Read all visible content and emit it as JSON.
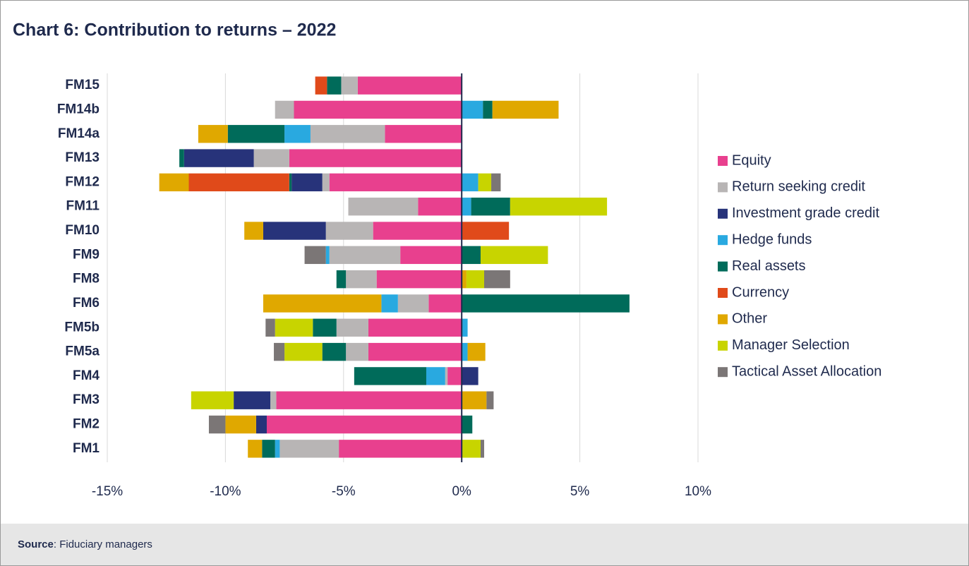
{
  "chart_data": {
    "type": "stacked-bar-horizontal",
    "title": "Chart 6: Contribution to returns – 2022",
    "categories": [
      "FM15",
      "FM14b",
      "FM14a",
      "FM13",
      "FM12",
      "FM11",
      "FM10",
      "FM9",
      "FM8",
      "FM6",
      "FM5b",
      "FM5a",
      "FM4",
      "FM3",
      "FM2",
      "FM1"
    ],
    "series": [
      {
        "name": "Equity",
        "color": "#e8408e",
        "values": [
          -4.4,
          -7.1,
          -3.25,
          -7.3,
          -5.6,
          -1.85,
          -3.75,
          -2.6,
          -3.6,
          -1.4,
          -3.95,
          -3.95,
          -0.6,
          -7.85,
          -8.25,
          -5.2
        ]
      },
      {
        "name": "Return seeking credit",
        "color": "#b8b5b5",
        "values": [
          -0.7,
          -0.8,
          -3.15,
          -1.5,
          -0.3,
          -2.95,
          -2.0,
          -3.0,
          -1.3,
          -1.3,
          -1.35,
          -0.95,
          -0.1,
          -0.25,
          0,
          -2.5
        ]
      },
      {
        "name": "Investment grade credit",
        "color": "#27337a",
        "values": [
          0,
          0,
          0,
          -2.95,
          -1.3,
          0,
          -2.65,
          0,
          0,
          0,
          0,
          0,
          0.7,
          -1.55,
          -0.45,
          0
        ]
      },
      {
        "name": "Hedge funds",
        "color": "#29a9e0",
        "values": [
          0,
          0.9,
          -1.1,
          0,
          0.7,
          0.4,
          0,
          -0.15,
          0,
          -0.7,
          0.25,
          0.25,
          -0.8,
          0,
          0,
          -0.2
        ]
      },
      {
        "name": "Real assets",
        "color": "#006b5a",
        "values": [
          -0.6,
          0.4,
          -2.4,
          -0.2,
          -0.1,
          1.65,
          0,
          0.8,
          -0.4,
          7.1,
          -1.0,
          -1.0,
          -3.05,
          0,
          0.45,
          -0.55
        ]
      },
      {
        "name": "Currency",
        "color": "#e04a1a",
        "values": [
          -0.5,
          0,
          0,
          0,
          -4.25,
          0,
          2.0,
          0,
          0,
          0,
          0,
          0,
          0,
          0,
          0,
          0
        ]
      },
      {
        "name": "Other",
        "color": "#e0a800",
        "values": [
          0,
          2.8,
          -1.25,
          0,
          -1.25,
          0,
          -0.8,
          0,
          0.2,
          -5.0,
          0,
          0.75,
          0,
          1.05,
          -1.3,
          -0.6
        ]
      },
      {
        "name": "Manager Selection",
        "color": "#c8d400",
        "values": [
          0,
          0,
          0,
          0,
          0.55,
          4.1,
          0,
          2.85,
          0.75,
          0,
          -1.6,
          -1.6,
          0,
          -1.8,
          0,
          0.8
        ]
      },
      {
        "name": "Tactical Asset Allocation",
        "color": "#7b7676",
        "values": [
          0,
          0,
          0,
          0,
          0.4,
          0,
          0,
          -0.9,
          1.1,
          0,
          -0.4,
          -0.45,
          0,
          0.3,
          -0.7,
          0.15
        ]
      }
    ],
    "xlim": [
      -15,
      10
    ],
    "xticks": [
      {
        "value": -15,
        "label": "-15%"
      },
      {
        "value": -10,
        "label": "-10%"
      },
      {
        "value": -5,
        "label": "-5%"
      },
      {
        "value": 0,
        "label": "0%"
      },
      {
        "value": 5,
        "label": "5%"
      },
      {
        "value": 10,
        "label": "10%"
      }
    ],
    "grid": true,
    "legend": "right"
  },
  "footer": {
    "label": "Source",
    "text": ": Fiduciary managers"
  }
}
